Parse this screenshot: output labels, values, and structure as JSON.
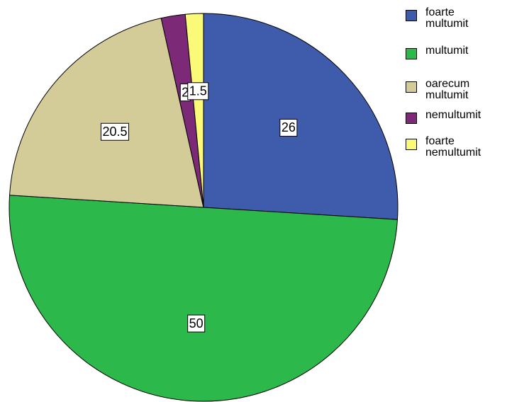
{
  "chart_data": {
    "type": "pie",
    "categories": [
      "foarte multumit",
      "multumit",
      "oarecum multumit",
      "nemultumit",
      "foarte nemultumit"
    ],
    "values": [
      26,
      50,
      20.5,
      2,
      1.5
    ],
    "colors": [
      "#3f5cac",
      "#2db84b",
      "#d4cc98",
      "#7c2a77",
      "#fafa78"
    ]
  }
}
